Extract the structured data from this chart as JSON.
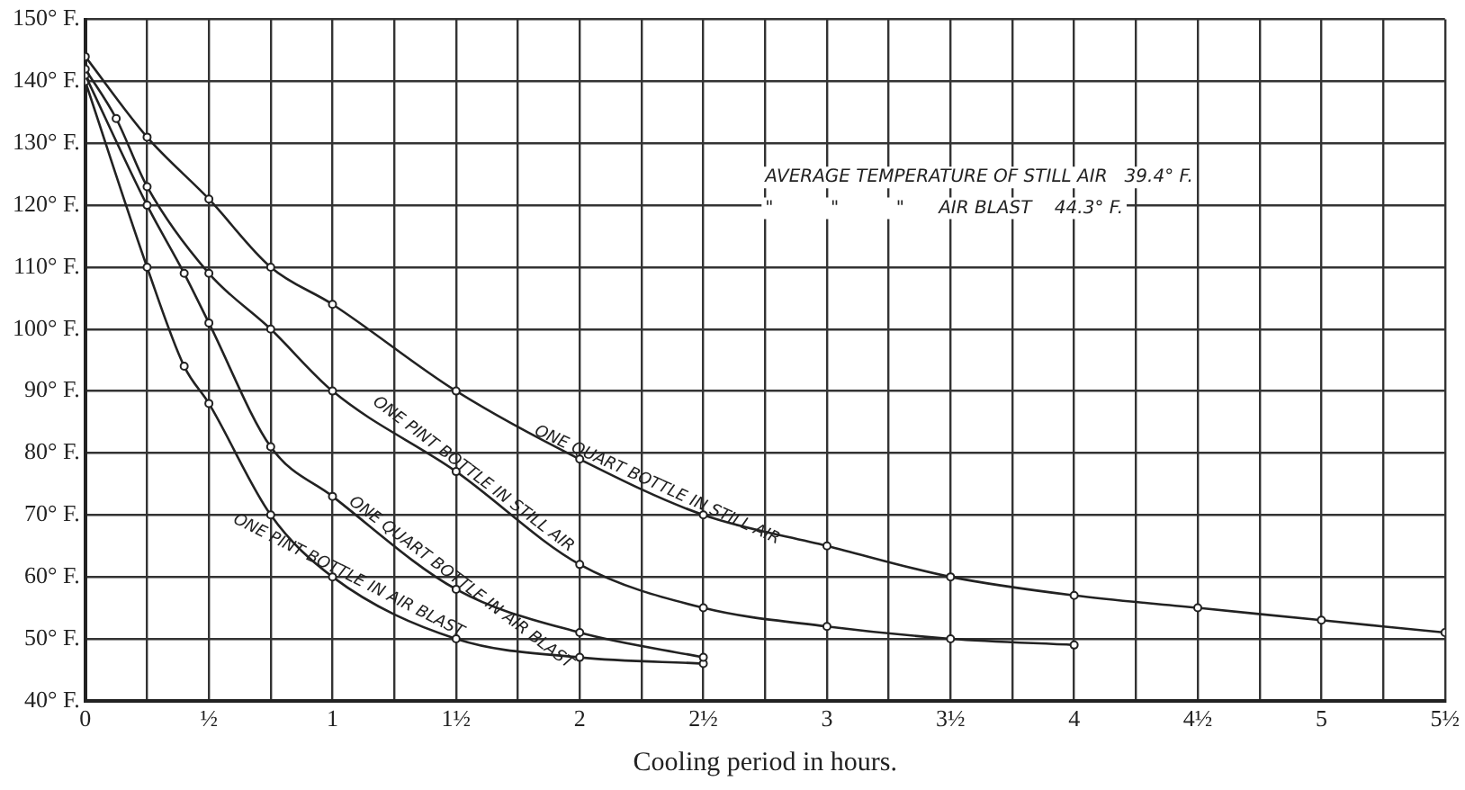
{
  "chart_data": {
    "type": "line",
    "xlabel": "Cooling period in hours.",
    "xlim": [
      0,
      5.5
    ],
    "ylim": [
      40,
      150
    ],
    "xticks": [
      {
        "value": 0,
        "label": "0"
      },
      {
        "value": 0.25,
        "label": null
      },
      {
        "value": 0.5,
        "label": "½"
      },
      {
        "value": 0.75,
        "label": null
      },
      {
        "value": 1,
        "label": "1"
      },
      {
        "value": 1.25,
        "label": null
      },
      {
        "value": 1.5,
        "label": "1½"
      },
      {
        "value": 1.75,
        "label": null
      },
      {
        "value": 2,
        "label": "2"
      },
      {
        "value": 2.25,
        "label": null
      },
      {
        "value": 2.5,
        "label": "2½"
      },
      {
        "value": 2.75,
        "label": null
      },
      {
        "value": 3,
        "label": "3"
      },
      {
        "value": 3.25,
        "label": null
      },
      {
        "value": 3.5,
        "label": "3½"
      },
      {
        "value": 3.75,
        "label": null
      },
      {
        "value": 4,
        "label": "4"
      },
      {
        "value": 4.25,
        "label": null
      },
      {
        "value": 4.5,
        "label": "4½"
      },
      {
        "value": 4.75,
        "label": null
      },
      {
        "value": 5,
        "label": "5"
      },
      {
        "value": 5.25,
        "label": null
      },
      {
        "value": 5.5,
        "label": "5½"
      }
    ],
    "yticks": [
      {
        "value": 40,
        "label": "40° F."
      },
      {
        "value": 50,
        "label": "50° F."
      },
      {
        "value": 60,
        "label": "60° F."
      },
      {
        "value": 70,
        "label": "70° F."
      },
      {
        "value": 80,
        "label": "80° F."
      },
      {
        "value": 90,
        "label": "90° F."
      },
      {
        "value": 100,
        "label": "100° F."
      },
      {
        "value": 110,
        "label": "110° F."
      },
      {
        "value": 120,
        "label": "120° F."
      },
      {
        "value": 130,
        "label": "130° F."
      },
      {
        "value": 140,
        "label": "140° F."
      },
      {
        "value": 150,
        "label": "150° F."
      }
    ],
    "grid": true,
    "legend": false,
    "marker": "circle",
    "line_style": "solid",
    "annotations": [
      "AVERAGE TEMPERATURE OF STILL AIR   39.4° F.",
      "\"          \"          \"      AIR BLAST    44.3° F."
    ],
    "series": [
      {
        "name": "ONE QUART BOTTLE IN STILL AIR",
        "color": "#222222",
        "x": [
          0,
          0.25,
          0.5,
          0.75,
          1,
          1.5,
          2,
          2.5,
          3,
          3.5,
          4,
          4.5,
          5,
          5.5
        ],
        "values": [
          144,
          131,
          121,
          110,
          104,
          90,
          79,
          70,
          65,
          60,
          57,
          55,
          53,
          51
        ]
      },
      {
        "name": "ONE PINT BOTTLE IN STILL AIR",
        "color": "#222222",
        "x": [
          0,
          0.125,
          0.25,
          0.5,
          0.75,
          1,
          1.5,
          2,
          2.5,
          3,
          3.5,
          4
        ],
        "values": [
          142,
          134,
          123,
          109,
          100,
          90,
          77,
          62,
          55,
          52,
          50,
          49
        ]
      },
      {
        "name": "ONE QUART BOTTLE IN AIR BLAST",
        "color": "#222222",
        "x": [
          0,
          0.25,
          0.4,
          0.5,
          0.75,
          1,
          1.5,
          2,
          2.5
        ],
        "values": [
          141,
          120,
          109,
          101,
          81,
          73,
          58,
          51,
          47
        ]
      },
      {
        "name": "ONE PINT BOTTLE IN AIR BLAST",
        "color": "#222222",
        "x": [
          0,
          0.25,
          0.4,
          0.5,
          0.75,
          1,
          1.5,
          2,
          2.5
        ],
        "values": [
          140,
          110,
          94,
          88,
          70,
          60,
          50,
          47,
          46
        ]
      }
    ]
  }
}
